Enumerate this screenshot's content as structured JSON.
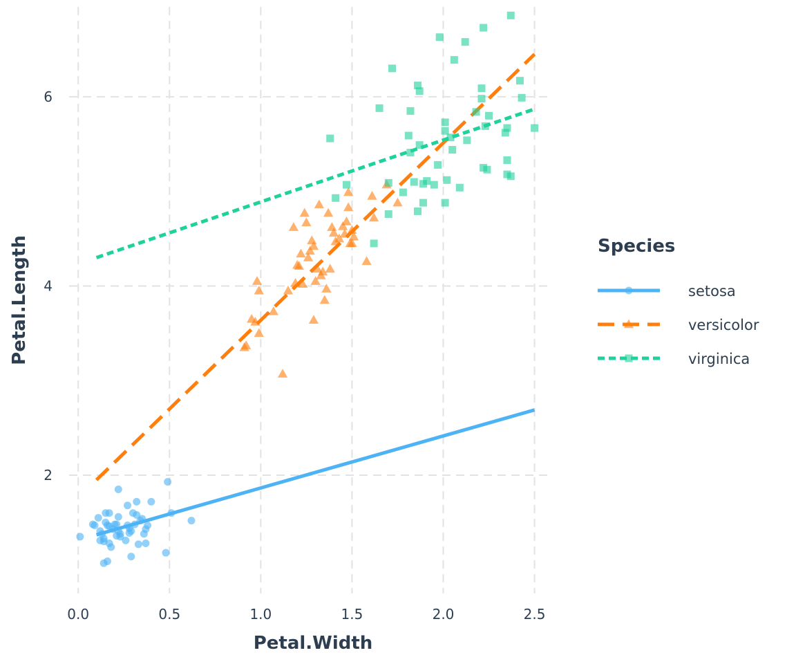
{
  "chart_data": {
    "type": "scatter",
    "xlabel": "Petal.Width",
    "ylabel": "Petal.Length",
    "xlim": [
      -0.05,
      2.6
    ],
    "ylim": [
      0.75,
      6.95
    ],
    "x_ticks": [
      0.0,
      0.5,
      1.0,
      1.5,
      2.0,
      2.5
    ],
    "x_tick_labels": [
      "0.0",
      "0.5",
      "1.0",
      "1.5",
      "2.0",
      "2.5"
    ],
    "y_ticks": [
      2,
      4,
      6
    ],
    "y_tick_labels": [
      "2",
      "4",
      "6"
    ],
    "grid": true,
    "legend": {
      "title": "Species",
      "position": "right"
    },
    "series": [
      {
        "name": "setosa",
        "color": "#4db3f5",
        "marker": "circle",
        "line_style": "solid",
        "fit_line": {
          "x": [
            0.1,
            2.5
          ],
          "y": [
            1.37,
            2.69
          ]
        },
        "points": [
          [
            0.01,
            1.35
          ],
          [
            0.08,
            1.48
          ],
          [
            0.09,
            1.47
          ],
          [
            0.11,
            1.55
          ],
          [
            0.12,
            1.31
          ],
          [
            0.12,
            1.41
          ],
          [
            0.13,
            1.38
          ],
          [
            0.14,
            1.3
          ],
          [
            0.14,
            1.33
          ],
          [
            0.15,
            1.6
          ],
          [
            0.15,
            1.5
          ],
          [
            0.16,
            1.47
          ],
          [
            0.17,
            1.46
          ],
          [
            0.14,
            1.07
          ],
          [
            0.16,
            1.09
          ],
          [
            0.17,
            1.6
          ],
          [
            0.17,
            1.28
          ],
          [
            0.18,
            1.24
          ],
          [
            0.19,
            1.43
          ],
          [
            0.2,
            1.48
          ],
          [
            0.21,
            1.36
          ],
          [
            0.21,
            1.48
          ],
          [
            0.22,
            1.56
          ],
          [
            0.22,
            1.85
          ],
          [
            0.22,
            1.41
          ],
          [
            0.23,
            1.38
          ],
          [
            0.23,
            1.35
          ],
          [
            0.26,
            1.31
          ],
          [
            0.27,
            1.68
          ],
          [
            0.27,
            1.47
          ],
          [
            0.28,
            1.44
          ],
          [
            0.28,
            1.39
          ],
          [
            0.29,
            1.14
          ],
          [
            0.29,
            1.41
          ],
          [
            0.3,
            1.6
          ],
          [
            0.31,
            1.48
          ],
          [
            0.32,
            1.72
          ],
          [
            0.32,
            1.58
          ],
          [
            0.33,
            1.27
          ],
          [
            0.34,
            1.52
          ],
          [
            0.35,
            1.54
          ],
          [
            0.36,
            1.38
          ],
          [
            0.37,
            1.43
          ],
          [
            0.37,
            1.28
          ],
          [
            0.38,
            1.47
          ],
          [
            0.4,
            1.72
          ],
          [
            0.48,
            1.18
          ],
          [
            0.49,
            1.93
          ],
          [
            0.51,
            1.6
          ],
          [
            0.62,
            1.52
          ]
        ]
      },
      {
        "name": "versicolor",
        "color": "#ff7f0e",
        "marker": "triangle",
        "line_style": "dashed",
        "fit_line": {
          "x": [
            0.1,
            2.5
          ],
          "y": [
            1.95,
            6.45
          ]
        },
        "points": [
          [
            0.91,
            3.35
          ],
          [
            0.92,
            3.37
          ],
          [
            0.95,
            3.65
          ],
          [
            0.97,
            3.62
          ],
          [
            0.98,
            4.05
          ],
          [
            0.99,
            3.95
          ],
          [
            0.99,
            3.5
          ],
          [
            1.07,
            3.73
          ],
          [
            1.12,
            3.07
          ],
          [
            1.15,
            3.95
          ],
          [
            1.18,
            4.62
          ],
          [
            1.19,
            4.03
          ],
          [
            1.2,
            4.22
          ],
          [
            1.21,
            4.21
          ],
          [
            1.22,
            4.34
          ],
          [
            1.23,
            4.02
          ],
          [
            1.24,
            4.77
          ],
          [
            1.25,
            4.67
          ],
          [
            1.26,
            4.3
          ],
          [
            1.27,
            4.37
          ],
          [
            1.28,
            4.48
          ],
          [
            1.29,
            4.42
          ],
          [
            1.3,
            4.05
          ],
          [
            1.29,
            3.64
          ],
          [
            1.31,
            4.18
          ],
          [
            1.32,
            4.86
          ],
          [
            1.33,
            4.11
          ],
          [
            1.34,
            4.15
          ],
          [
            1.35,
            3.85
          ],
          [
            1.36,
            3.97
          ],
          [
            1.37,
            4.77
          ],
          [
            1.38,
            4.18
          ],
          [
            1.39,
            4.62
          ],
          [
            1.4,
            4.56
          ],
          [
            1.41,
            4.47
          ],
          [
            1.43,
            4.5
          ],
          [
            1.45,
            4.63
          ],
          [
            1.46,
            4.55
          ],
          [
            1.47,
            4.68
          ],
          [
            1.48,
            4.99
          ],
          [
            1.48,
            4.83
          ],
          [
            1.49,
            4.45
          ],
          [
            1.5,
            4.59
          ],
          [
            1.5,
            4.45
          ],
          [
            1.51,
            4.52
          ],
          [
            1.58,
            4.26
          ],
          [
            1.61,
            4.95
          ],
          [
            1.62,
            4.72
          ],
          [
            1.69,
            5.07
          ],
          [
            1.75,
            4.88
          ]
        ]
      },
      {
        "name": "virginica",
        "color": "#1fd19b",
        "marker": "square",
        "line_style": "dotted",
        "fit_line": {
          "x": [
            0.1,
            2.5
          ],
          "y": [
            4.3,
            5.87
          ]
        },
        "points": [
          [
            1.38,
            5.56
          ],
          [
            1.41,
            4.93
          ],
          [
            1.47,
            5.07
          ],
          [
            1.62,
            4.45
          ],
          [
            1.65,
            5.88
          ],
          [
            1.7,
            5.09
          ],
          [
            1.7,
            4.76
          ],
          [
            1.72,
            6.3
          ],
          [
            1.78,
            4.99
          ],
          [
            1.81,
            5.59
          ],
          [
            1.82,
            5.85
          ],
          [
            1.82,
            5.41
          ],
          [
            1.84,
            5.1
          ],
          [
            1.86,
            6.12
          ],
          [
            1.86,
            4.79
          ],
          [
            1.87,
            6.06
          ],
          [
            1.87,
            5.49
          ],
          [
            1.89,
            5.08
          ],
          [
            1.89,
            4.88
          ],
          [
            1.91,
            5.11
          ],
          [
            1.95,
            5.07
          ],
          [
            1.97,
            5.28
          ],
          [
            1.98,
            6.63
          ],
          [
            2.01,
            5.73
          ],
          [
            2.01,
            4.88
          ],
          [
            2.01,
            5.64
          ],
          [
            2.02,
            5.12
          ],
          [
            2.04,
            5.57
          ],
          [
            2.05,
            5.44
          ],
          [
            2.06,
            6.39
          ],
          [
            2.09,
            5.04
          ],
          [
            2.12,
            6.58
          ],
          [
            2.13,
            5.54
          ],
          [
            2.18,
            5.84
          ],
          [
            2.21,
            5.98
          ],
          [
            2.21,
            6.09
          ],
          [
            2.22,
            5.25
          ],
          [
            2.22,
            6.73
          ],
          [
            2.23,
            5.69
          ],
          [
            2.24,
            5.23
          ],
          [
            2.25,
            5.8
          ],
          [
            2.34,
            5.62
          ],
          [
            2.35,
            5.67
          ],
          [
            2.35,
            5.33
          ],
          [
            2.35,
            5.18
          ],
          [
            2.37,
            6.86
          ],
          [
            2.37,
            5.16
          ],
          [
            2.42,
            6.17
          ],
          [
            2.43,
            5.99
          ],
          [
            2.5,
            5.67
          ]
        ]
      }
    ]
  }
}
